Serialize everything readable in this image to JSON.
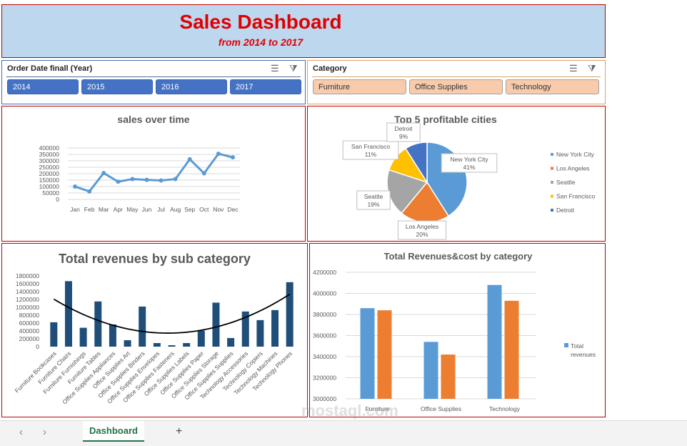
{
  "header": {
    "title": "Sales Dashboard",
    "subtitle": "from 2014 to 2017"
  },
  "slicers": {
    "year": {
      "title": "Order Date finall (Year)",
      "items": [
        "2014",
        "2015",
        "2016",
        "2017"
      ],
      "multi_select_icon": "multi-select-icon",
      "clear_filter_icon": "clear-filter-icon"
    },
    "category": {
      "title": "Category",
      "items": [
        "Furniture",
        "Office Supplies",
        "Technology"
      ],
      "multi_select_icon": "multi-select-icon",
      "clear_filter_icon": "clear-filter-icon"
    }
  },
  "chart_data": [
    {
      "type": "line",
      "title": "sales over time",
      "categories": [
        "Jan",
        "Feb",
        "Mar",
        "Apr",
        "May",
        "Jun",
        "Jul",
        "Aug",
        "Sep",
        "Oct",
        "Nov",
        "Dec"
      ],
      "values": [
        100000,
        62000,
        205000,
        138000,
        158000,
        152000,
        147000,
        158000,
        312000,
        203000,
        355000,
        327000
      ],
      "ylim": [
        0,
        400000
      ],
      "yticks": [
        "0",
        "50000",
        "100000",
        "150000",
        "200000",
        "250000",
        "300000",
        "350000",
        "400000"
      ],
      "grid": true,
      "color": "#5b9bd5"
    },
    {
      "type": "pie",
      "title": "Top 5 profitable cities",
      "labels": [
        "New York City",
        "Los Angeles",
        "Seattle",
        "San Francisco",
        "Detroit"
      ],
      "values": [
        41,
        20,
        19,
        11,
        9
      ],
      "data_labels": [
        "41%",
        "20%",
        "19%",
        "11%",
        "9%"
      ],
      "colors": [
        "#5b9bd5",
        "#ed7d31",
        "#a5a5a5",
        "#ffc000",
        "#4472c4"
      ],
      "legend": "right"
    },
    {
      "type": "bar",
      "title": "Total revenues by sub category",
      "categories": [
        "Furniture Bookcases",
        "Furniture Chairs",
        "Furniture Furnishings",
        "Furniture Tables",
        "Office Supplies Appliances",
        "Office Supplies Art",
        "Office Supplies Binders",
        "Office Supplies Envelopes",
        "Office Supplies Fasteners",
        "Office Supplies Labels",
        "Office Supplies Paper",
        "Office Supplies Storage",
        "Office Supplies Supplies",
        "Technology Accessories",
        "Technology Copiers",
        "Technology Machines",
        "Technology Phones"
      ],
      "values": [
        620000,
        1666000,
        480000,
        1150000,
        565000,
        164000,
        1020000,
        91000,
        36000,
        91000,
        407000,
        1120000,
        219000,
        894000,
        675000,
        930000,
        1640000
      ],
      "ylim": [
        0,
        1800000
      ],
      "yticks": [
        "0",
        "200000",
        "400000",
        "600000",
        "800000",
        "1000000",
        "1200000",
        "1400000",
        "1600000",
        "1800000"
      ],
      "trendline": "polynomial",
      "color": "#1f4e79"
    },
    {
      "type": "bar",
      "title": "Total Revenues&cost by category",
      "categories": [
        "Furniture",
        "Office Supplies",
        "Technology"
      ],
      "series": [
        {
          "name": "Total revenues",
          "values": [
            3860000,
            3540000,
            4080000
          ],
          "color": "#5b9bd5"
        },
        {
          "values": [
            3840000,
            3420000,
            3930000
          ],
          "color": "#ed7d31"
        }
      ],
      "ylim": [
        3000000,
        4200000
      ],
      "yticks": [
        "3000000",
        "3200000",
        "3400000",
        "3600000",
        "3800000",
        "4000000",
        "4200000"
      ],
      "legend": "right",
      "grid": true
    }
  ],
  "sheet_tabs": {
    "active": "Dashboard",
    "prev_icon": "chevron-left-icon",
    "next_icon": "chevron-right-icon",
    "add_icon": "plus-icon"
  },
  "watermark": "mostaql.com"
}
